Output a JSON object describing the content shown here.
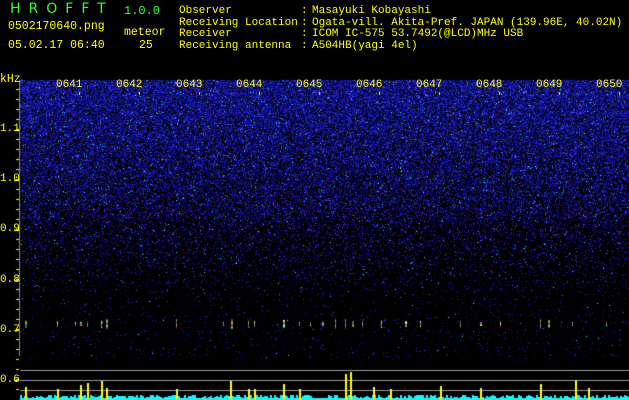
{
  "app": {
    "title": "HROFFT",
    "version": "1.0.0"
  },
  "file": {
    "name": "0502170640.png",
    "datetime": "05.02.17 06:40"
  },
  "meteor": {
    "label": "meteor",
    "count": "25"
  },
  "info": [
    {
      "label": "Observer",
      "value": "Masayuki Kobayashi"
    },
    {
      "label": "Receiving Location",
      "value": "Ogata-vill. Akita-Pref. JAPAN (139.96E, 40.02N)"
    },
    {
      "label": "Receiver",
      "value": "ICOM IC-575 53.7492(@LCD)MHz USB"
    },
    {
      "label": "Receiving antenna",
      "value": "A504HB(yagi 4el)"
    }
  ],
  "axis": {
    "unit": "kHz",
    "y_ticks": [
      "1.1",
      "1.0",
      "0.9",
      "0.8",
      "0.7",
      "0.6"
    ],
    "minutes": [
      "0641",
      "0642",
      "0643",
      "0644",
      "0645",
      "0646",
      "0647",
      "0648",
      "0649",
      "0650"
    ]
  },
  "colors": {
    "text": "#ffff00",
    "title": "#33ff33",
    "noise": "#1a1aff",
    "counts": "#00ffff"
  }
}
